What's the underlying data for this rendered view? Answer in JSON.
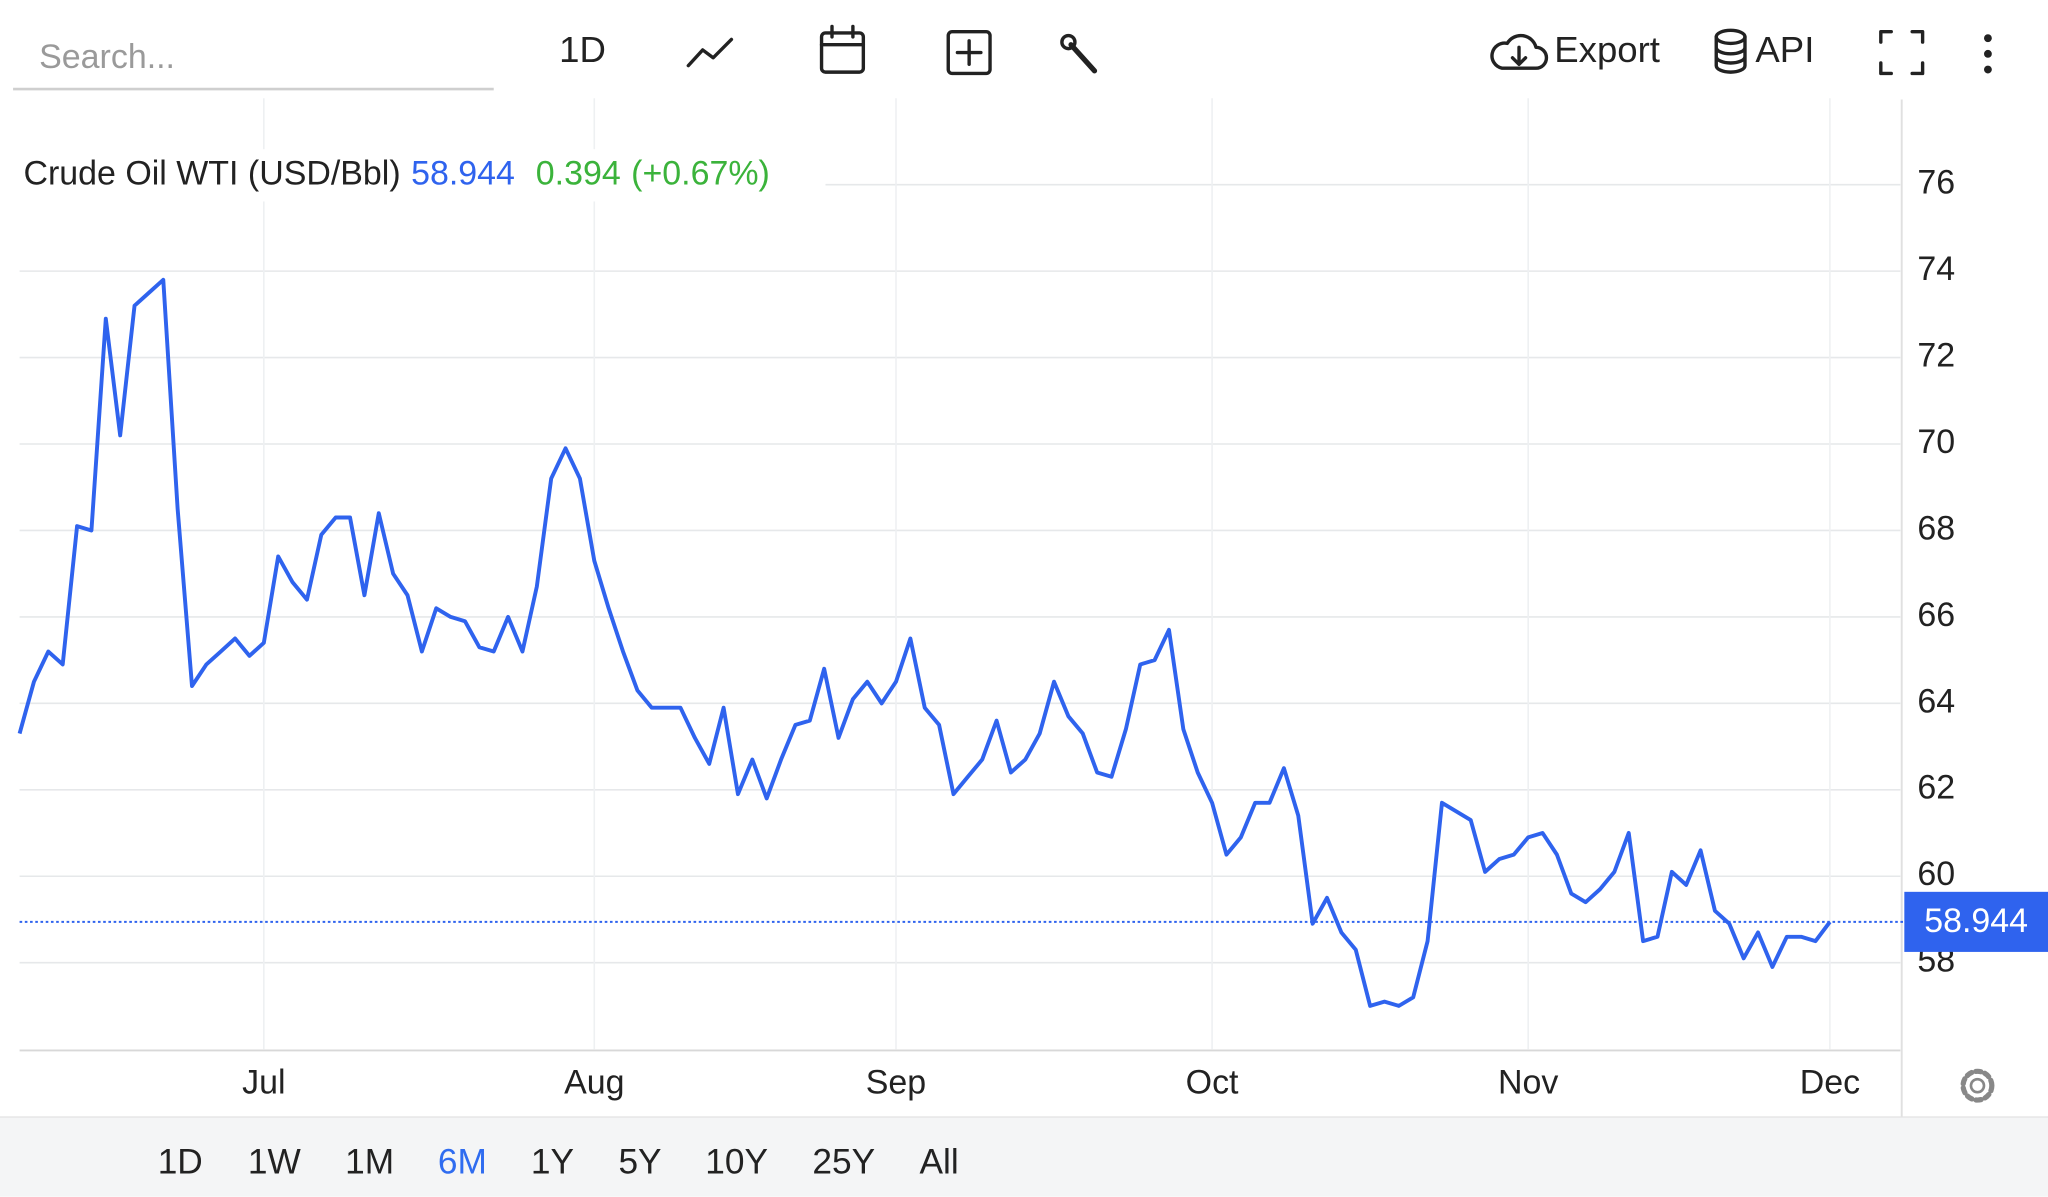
{
  "toolbar": {
    "search_placeholder": "Search...",
    "interval": "1D",
    "export": "Export",
    "api": "API"
  },
  "range_buttons": {
    "items": [
      "1D",
      "1W",
      "1M",
      "6M",
      "1Y",
      "5Y",
      "10Y",
      "25Y",
      "All"
    ],
    "active": "6M"
  },
  "chart_data": {
    "type": "line",
    "categories": [
      null,
      null,
      null,
      null,
      null,
      null,
      null,
      null,
      null,
      null,
      null,
      null,
      null,
      null,
      null,
      null,
      null,
      "Jul",
      null,
      null,
      null,
      null,
      null,
      null,
      null,
      null,
      null,
      null,
      null,
      null,
      null,
      null,
      null,
      null,
      null,
      null,
      null,
      null,
      null,
      null,
      "Aug",
      null,
      null,
      null,
      null,
      null,
      null,
      null,
      null,
      null,
      null,
      null,
      null,
      null,
      null,
      null,
      null,
      null,
      null,
      null,
      null,
      "Sep",
      null,
      null,
      null,
      null,
      null,
      null,
      null,
      null,
      null,
      null,
      null,
      null,
      null,
      null,
      null,
      null,
      null,
      null,
      null,
      null,
      null,
      "Oct",
      null,
      null,
      null,
      null,
      null,
      null,
      null,
      null,
      null,
      null,
      null,
      null,
      null,
      null,
      null,
      null,
      null,
      null,
      null,
      null,
      null,
      "Nov",
      null,
      null,
      null,
      null,
      null,
      null,
      null,
      null,
      null,
      null,
      null,
      null,
      null,
      null,
      null,
      null,
      null,
      null,
      null,
      null,
      "Dec"
    ],
    "series": [
      {
        "name": "Crude Oil WTI (USD/Bbl)",
        "color": "#2f63ee",
        "values": [
          63.3,
          64.5,
          65.2,
          64.9,
          68.1,
          68.0,
          72.9,
          70.2,
          73.2,
          73.5,
          73.8,
          68.5,
          64.4,
          64.9,
          65.2,
          65.5,
          65.1,
          65.4,
          67.4,
          66.8,
          66.4,
          67.9,
          68.3,
          68.3,
          66.5,
          68.4,
          67.0,
          66.5,
          65.2,
          66.2,
          66.0,
          65.9,
          65.3,
          65.2,
          66.0,
          65.2,
          66.7,
          69.2,
          69.9,
          69.2,
          67.3,
          66.2,
          65.2,
          64.3,
          63.9,
          63.9,
          63.9,
          63.2,
          62.6,
          63.9,
          61.9,
          62.7,
          61.8,
          62.7,
          63.5,
          63.6,
          64.8,
          63.2,
          64.1,
          64.5,
          64.0,
          64.5,
          65.5,
          63.9,
          63.5,
          61.9,
          62.3,
          62.7,
          63.6,
          62.4,
          62.7,
          63.3,
          64.5,
          63.7,
          63.3,
          62.4,
          62.3,
          63.4,
          64.9,
          65.0,
          65.7,
          63.4,
          62.4,
          61.7,
          60.5,
          60.9,
          61.7,
          61.7,
          62.5,
          61.4,
          58.9,
          59.5,
          58.7,
          58.3,
          57.0,
          57.1,
          57.0,
          57.2,
          58.5,
          61.7,
          61.5,
          61.3,
          60.1,
          60.4,
          60.5,
          60.9,
          61.0,
          60.5,
          59.6,
          59.4,
          59.7,
          60.1,
          61.0,
          58.5,
          58.6,
          60.1,
          59.8,
          60.6,
          59.2,
          58.9,
          58.1,
          58.7,
          57.9,
          58.6,
          58.6,
          58.5,
          58.944
        ]
      }
    ],
    "change": 0.394,
    "change_percent": "(+0.67%)",
    "change_color": "#3bb33b",
    "ylim": [
      56,
      78
    ],
    "yticks": [
      58,
      60,
      62,
      64,
      66,
      68,
      70,
      72,
      74,
      76
    ],
    "grid": true
  }
}
